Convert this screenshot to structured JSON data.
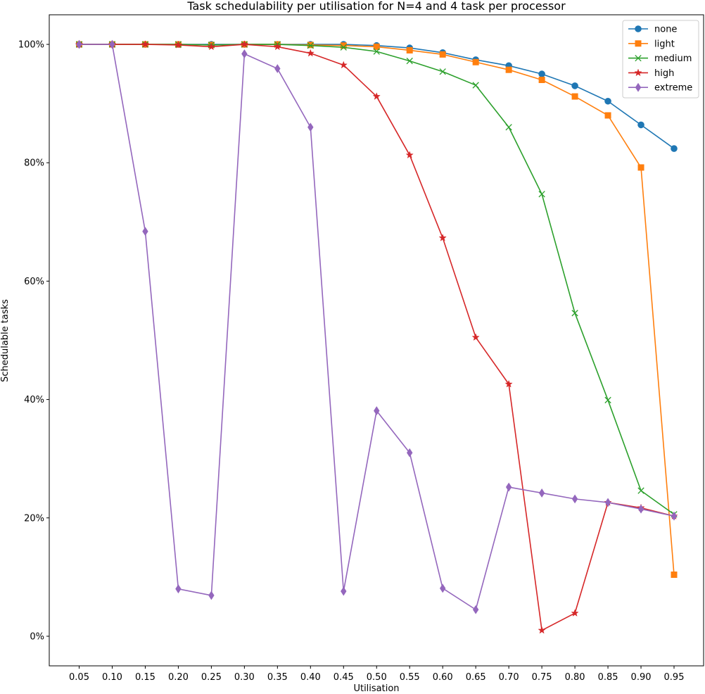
{
  "chart_data": {
    "type": "line",
    "title": "Task schedulability per utilisation for N=4 and 4 task per processor",
    "xlabel": "Utilisation",
    "ylabel": "Schedulable tasks",
    "x": [
      "0.05",
      "0.10",
      "0.15",
      "0.20",
      "0.25",
      "0.30",
      "0.35",
      "0.40",
      "0.45",
      "0.50",
      "0.55",
      "0.60",
      "0.65",
      "0.70",
      "0.75",
      "0.80",
      "0.85",
      "0.90",
      "0.95"
    ],
    "yticks": [
      0,
      20,
      40,
      60,
      80,
      100
    ],
    "ytick_labels": [
      "0%",
      "20%",
      "40%",
      "60%",
      "80%",
      "100%"
    ],
    "ylim": [
      -5,
      105
    ],
    "grid": false,
    "legend_position": "top-right",
    "series": [
      {
        "name": "none",
        "color": "#1f77b4",
        "marker": "circle",
        "values": [
          100,
          100,
          100,
          100,
          100,
          100,
          100,
          100,
          100,
          99.8,
          99.4,
          98.6,
          97.4,
          96.4,
          95.0,
          93.0,
          90.4,
          86.4,
          82.4
        ]
      },
      {
        "name": "light",
        "color": "#ff7f0e",
        "marker": "square",
        "values": [
          100,
          100,
          100,
          100,
          99.9,
          100,
          100,
          99.9,
          99.8,
          99.6,
          99.0,
          98.3,
          97.0,
          95.7,
          94.0,
          91.2,
          88.0,
          79.2,
          10.4
        ]
      },
      {
        "name": "medium",
        "color": "#2ca02c",
        "marker": "x",
        "values": [
          100,
          100,
          100,
          100,
          99.9,
          100,
          100,
          99.8,
          99.5,
          98.8,
          97.2,
          95.4,
          93.1,
          86.0,
          74.7,
          54.6,
          39.9,
          24.6,
          20.6
        ]
      },
      {
        "name": "high",
        "color": "#d62728",
        "marker": "star",
        "values": [
          100,
          100,
          100,
          99.9,
          99.6,
          100,
          99.6,
          98.5,
          96.5,
          91.2,
          81.3,
          67.3,
          50.5,
          42.6,
          1.0,
          3.9,
          22.6,
          21.7,
          20.3
        ]
      },
      {
        "name": "extreme",
        "color": "#9467bd",
        "marker": "diamond",
        "values": [
          100,
          100,
          68.4,
          8.0,
          6.9,
          98.4,
          95.9,
          86.0,
          7.6,
          38.1,
          31.0,
          8.1,
          4.5,
          25.2,
          24.2,
          23.2,
          22.6,
          21.5,
          20.3
        ]
      }
    ]
  }
}
